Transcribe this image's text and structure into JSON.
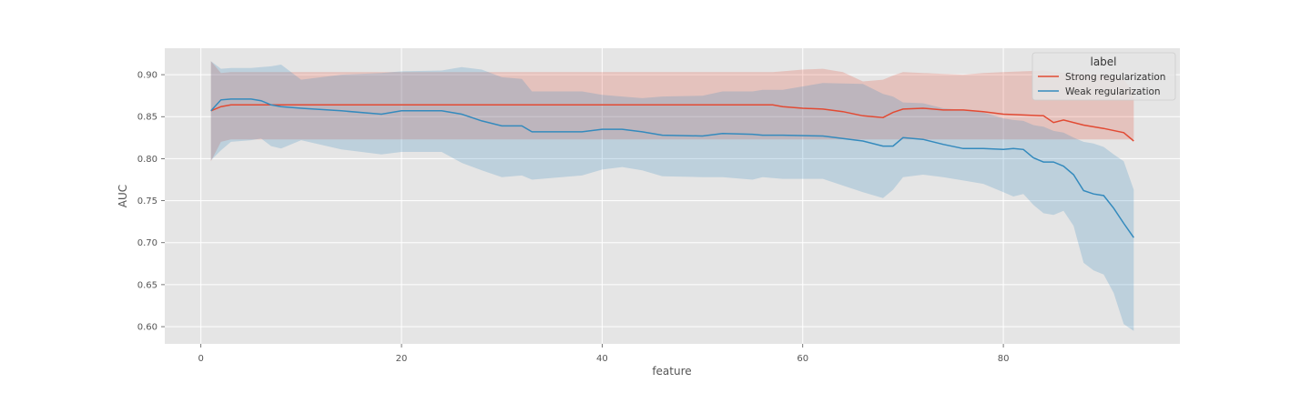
{
  "chart_data": {
    "type": "line",
    "title": "",
    "xlabel": "feature",
    "ylabel": "AUC",
    "xlim": [
      -3.6,
      97.6
    ],
    "ylim": [
      0.5795,
      0.9315
    ],
    "xticks": [
      0,
      20,
      40,
      60,
      80
    ],
    "yticks": [
      0.6,
      0.65,
      0.7,
      0.75,
      0.8,
      0.85,
      0.9
    ],
    "xtick_labels": [
      "0",
      "20",
      "40",
      "60",
      "80"
    ],
    "ytick_labels": [
      "0.60",
      "0.65",
      "0.70",
      "0.75",
      "0.80",
      "0.85",
      "0.90"
    ],
    "grid": true,
    "legend": {
      "title": "label",
      "position": "top-right",
      "entries": [
        "Strong regularization",
        "Weak regularization"
      ]
    },
    "series": [
      {
        "name": "Strong regularization",
        "color": "#E24A33",
        "x": [
          1,
          2,
          3,
          5,
          10,
          20,
          30,
          40,
          50,
          57,
          58,
          60,
          62,
          64,
          66,
          68,
          69,
          70,
          72,
          74,
          76,
          78,
          80,
          82,
          84,
          85,
          86,
          88,
          90,
          92,
          93
        ],
        "y": [
          0.857,
          0.862,
          0.864,
          0.864,
          0.864,
          0.864,
          0.864,
          0.864,
          0.864,
          0.864,
          0.862,
          0.86,
          0.859,
          0.856,
          0.851,
          0.849,
          0.855,
          0.859,
          0.86,
          0.858,
          0.858,
          0.856,
          0.853,
          0.852,
          0.851,
          0.843,
          0.846,
          0.84,
          0.836,
          0.831,
          0.821
        ],
        "lower": [
          0.797,
          0.82,
          0.823,
          0.823,
          0.823,
          0.823,
          0.823,
          0.823,
          0.823,
          0.823,
          0.823,
          0.823,
          0.823,
          0.823,
          0.823,
          0.823,
          0.823,
          0.823,
          0.823,
          0.823,
          0.823,
          0.823,
          0.823,
          0.823,
          0.823,
          0.823,
          0.823,
          0.823,
          0.823,
          0.823,
          0.823
        ],
        "upper": [
          0.916,
          0.902,
          0.903,
          0.903,
          0.903,
          0.903,
          0.903,
          0.903,
          0.903,
          0.903,
          0.904,
          0.906,
          0.907,
          0.903,
          0.892,
          0.894,
          0.899,
          0.903,
          0.902,
          0.901,
          0.9,
          0.902,
          0.903,
          0.904,
          0.905,
          0.903,
          0.902,
          0.901,
          0.9,
          0.894,
          0.88
        ]
      },
      {
        "name": "Weak regularization",
        "color": "#348ABD",
        "x": [
          1,
          2,
          3,
          5,
          6,
          7,
          8,
          10,
          14,
          18,
          20,
          24,
          26,
          28,
          30,
          32,
          33,
          38,
          40,
          42,
          44,
          46,
          50,
          52,
          55,
          56,
          58,
          62,
          66,
          68,
          69,
          70,
          72,
          74,
          76,
          78,
          80,
          81,
          82,
          83,
          84,
          85,
          86,
          87,
          88,
          89,
          90,
          91,
          92,
          93
        ],
        "y": [
          0.857,
          0.87,
          0.871,
          0.871,
          0.869,
          0.864,
          0.862,
          0.86,
          0.857,
          0.853,
          0.857,
          0.857,
          0.853,
          0.845,
          0.839,
          0.839,
          0.832,
          0.832,
          0.835,
          0.835,
          0.832,
          0.828,
          0.827,
          0.83,
          0.829,
          0.828,
          0.828,
          0.827,
          0.821,
          0.815,
          0.815,
          0.825,
          0.823,
          0.817,
          0.812,
          0.812,
          0.811,
          0.812,
          0.811,
          0.801,
          0.796,
          0.796,
          0.791,
          0.781,
          0.762,
          0.758,
          0.756,
          0.741,
          0.723,
          0.706
        ],
        "lower": [
          0.798,
          0.81,
          0.82,
          0.822,
          0.824,
          0.815,
          0.812,
          0.822,
          0.811,
          0.805,
          0.808,
          0.808,
          0.795,
          0.786,
          0.778,
          0.78,
          0.775,
          0.78,
          0.787,
          0.79,
          0.786,
          0.779,
          0.778,
          0.778,
          0.775,
          0.778,
          0.776,
          0.776,
          0.76,
          0.753,
          0.763,
          0.778,
          0.781,
          0.778,
          0.774,
          0.77,
          0.76,
          0.755,
          0.758,
          0.745,
          0.735,
          0.733,
          0.738,
          0.72,
          0.676,
          0.667,
          0.662,
          0.64,
          0.603,
          0.595
        ],
        "upper": [
          0.916,
          0.907,
          0.908,
          0.908,
          0.909,
          0.91,
          0.912,
          0.894,
          0.9,
          0.902,
          0.904,
          0.905,
          0.909,
          0.906,
          0.897,
          0.895,
          0.88,
          0.88,
          0.876,
          0.874,
          0.872,
          0.874,
          0.875,
          0.88,
          0.88,
          0.882,
          0.882,
          0.89,
          0.889,
          0.877,
          0.874,
          0.867,
          0.866,
          0.86,
          0.858,
          0.855,
          0.848,
          0.846,
          0.845,
          0.84,
          0.838,
          0.833,
          0.831,
          0.825,
          0.82,
          0.818,
          0.814,
          0.805,
          0.797,
          0.763
        ]
      }
    ]
  }
}
